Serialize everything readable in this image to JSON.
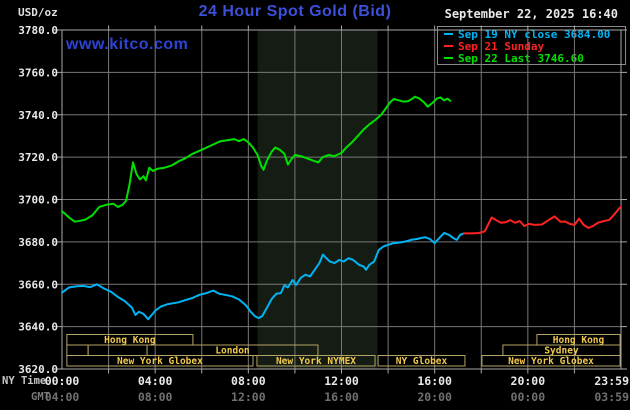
{
  "header": {
    "units_label": "USD/oz",
    "title": "24 Hour Spot Gold (Bid)",
    "datetime": "September 22, 2025 16:40",
    "watermark": "www.kitco.com"
  },
  "legend": {
    "items": [
      {
        "label": "Sep 19 NY close 3684.00",
        "color": "#00b4f4"
      },
      {
        "label": "Sep 21 Sunday",
        "color": "#ff2222"
      },
      {
        "label": "Sep 22 Last 3746.60",
        "color": "#00e000"
      }
    ]
  },
  "colors": {
    "title": "#3c50d8",
    "watermark": "#2e44d4",
    "grid": "#777777",
    "border": "#a8a8a8",
    "axis_text": "#e8e8e8",
    "gmt_text": "#707070",
    "session_border": "#b3a265",
    "session_text": "#f0c94e",
    "band": "#141c14"
  },
  "axes": {
    "y": {
      "labels": [
        "3780.0",
        "3760.0",
        "3740.0",
        "3720.0",
        "3700.0",
        "3680.0",
        "3660.0",
        "3640.0",
        "3620.0"
      ]
    },
    "x": {
      "ny_caption": "NY Time",
      "gmt_caption": "GMT",
      "ticks": [
        {
          "h": 0,
          "ny": "00:00",
          "gmt": "04:00"
        },
        {
          "h": 4,
          "ny": "04:00",
          "gmt": "08:00"
        },
        {
          "h": 8,
          "ny": "08:00",
          "gmt": "12:00"
        },
        {
          "h": 12,
          "ny": "12:00",
          "gmt": "16:00"
        },
        {
          "h": 16,
          "ny": "16:00",
          "gmt": "20:00"
        },
        {
          "h": 20,
          "ny": "20:00",
          "gmt": "00:00"
        },
        {
          "h": 23.983,
          "ny": "23:59",
          "gmt": "03:59"
        }
      ]
    }
  },
  "sessions": {
    "rows": [
      [
        {
          "label": "Hong Kong",
          "start_h": 0.21,
          "end_h": 5.62
        },
        {
          "label": "Hong Kong",
          "start_h": 20.39,
          "end_h": 23.96
        }
      ],
      [
        {
          "label": "",
          "start_h": 0.21,
          "end_h": 1.12
        },
        {
          "label": "",
          "start_h": 1.12,
          "end_h": 3.65
        },
        {
          "label": "London",
          "start_h": 3.65,
          "end_h": 10.99
        },
        {
          "label": "Sydney",
          "start_h": 18.93,
          "end_h": 23.96
        }
      ],
      [
        {
          "label": "New York Globex",
          "start_h": 0.21,
          "end_h": 8.2
        },
        {
          "label": "New York NYMEX",
          "start_h": 8.37,
          "end_h": 13.44
        },
        {
          "label": "NY Globex",
          "start_h": 13.57,
          "end_h": 17.3
        },
        {
          "label": "New York Globex",
          "start_h": 18.03,
          "end_h": 23.96
        }
      ]
    ]
  },
  "chart_data": {
    "type": "line",
    "title": "24 Hour Spot Gold (Bid)",
    "xlabel": "NY Time (hours)",
    "ylabel": "USD/oz",
    "xlim": [
      0,
      24
    ],
    "ylim": [
      3620,
      3780
    ],
    "y_tick_step": 20,
    "x_gridline_step_h": 2,
    "legend_position": "top-right",
    "shaded_region": {
      "label": "New York NYMEX session",
      "start_h": 8.4,
      "end_h": 13.55
    },
    "series": [
      {
        "name": "Sep 19 NY close",
        "color": "#00b4f4",
        "close_value": 3684.0,
        "points": [
          [
            0,
            3656
          ],
          [
            0.3,
            3658.5
          ],
          [
            0.6,
            3659
          ],
          [
            0.9,
            3659.2
          ],
          [
            1.2,
            3658.6
          ],
          [
            1.5,
            3660
          ],
          [
            1.8,
            3658
          ],
          [
            2.1,
            3656.5
          ],
          [
            2.4,
            3654
          ],
          [
            2.7,
            3652
          ],
          [
            3,
            3649
          ],
          [
            3.15,
            3645.5
          ],
          [
            3.3,
            3647
          ],
          [
            3.5,
            3646
          ],
          [
            3.7,
            3643.5
          ],
          [
            3.85,
            3645.5
          ],
          [
            4,
            3647.5
          ],
          [
            4.25,
            3649.5
          ],
          [
            4.5,
            3650.5
          ],
          [
            4.75,
            3651
          ],
          [
            5,
            3651.5
          ],
          [
            5.3,
            3652.5
          ],
          [
            5.6,
            3653.5
          ],
          [
            5.9,
            3655
          ],
          [
            6.2,
            3655.8
          ],
          [
            6.5,
            3657
          ],
          [
            6.75,
            3655.5
          ],
          [
            7,
            3655
          ],
          [
            7.3,
            3654.3
          ],
          [
            7.6,
            3652.8
          ],
          [
            7.9,
            3650
          ],
          [
            8.1,
            3647
          ],
          [
            8.3,
            3644.8
          ],
          [
            8.45,
            3644
          ],
          [
            8.6,
            3645
          ],
          [
            8.8,
            3649
          ],
          [
            9,
            3653
          ],
          [
            9.2,
            3655.5
          ],
          [
            9.4,
            3655.8
          ],
          [
            9.55,
            3659.5
          ],
          [
            9.7,
            3658.5
          ],
          [
            9.9,
            3662
          ],
          [
            10.05,
            3659.7
          ],
          [
            10.25,
            3663
          ],
          [
            10.45,
            3664.5
          ],
          [
            10.65,
            3663.7
          ],
          [
            10.85,
            3666.8
          ],
          [
            11.05,
            3670
          ],
          [
            11.2,
            3674
          ],
          [
            11.35,
            3672.3
          ],
          [
            11.5,
            3670.7
          ],
          [
            11.7,
            3670
          ],
          [
            11.9,
            3671.5
          ],
          [
            12.1,
            3670.7
          ],
          [
            12.3,
            3672.3
          ],
          [
            12.5,
            3671.5
          ],
          [
            12.75,
            3669.2
          ],
          [
            12.95,
            3668.4
          ],
          [
            13.05,
            3666.8
          ],
          [
            13.2,
            3669.2
          ],
          [
            13.4,
            3670.7
          ],
          [
            13.6,
            3676.2
          ],
          [
            13.8,
            3677.8
          ],
          [
            14,
            3678.6
          ],
          [
            14.25,
            3679.4
          ],
          [
            14.5,
            3679.7
          ],
          [
            14.75,
            3680.2
          ],
          [
            15,
            3681
          ],
          [
            15.2,
            3681.3
          ],
          [
            15.4,
            3681.8
          ],
          [
            15.6,
            3682.2
          ],
          [
            15.8,
            3681.3
          ],
          [
            16,
            3679.4
          ],
          [
            16.2,
            3681.8
          ],
          [
            16.4,
            3684.2
          ],
          [
            16.6,
            3683.4
          ],
          [
            16.8,
            3681.8
          ],
          [
            16.95,
            3681
          ],
          [
            17.1,
            3683.4
          ],
          [
            17.25,
            3684
          ]
        ]
      },
      {
        "name": "Sep 21 Sunday",
        "color": "#ff2222",
        "points": [
          [
            17.25,
            3684
          ],
          [
            17.6,
            3684
          ],
          [
            17.9,
            3684.2
          ],
          [
            18.15,
            3685
          ],
          [
            18.45,
            3691.5
          ],
          [
            18.65,
            3690.2
          ],
          [
            18.85,
            3689
          ],
          [
            19.05,
            3689.3
          ],
          [
            19.25,
            3690.3
          ],
          [
            19.45,
            3689
          ],
          [
            19.65,
            3689.8
          ],
          [
            19.85,
            3687.5
          ],
          [
            20.05,
            3688.5
          ],
          [
            20.3,
            3688
          ],
          [
            20.6,
            3688.2
          ],
          [
            20.85,
            3690
          ],
          [
            21.15,
            3692
          ],
          [
            21.4,
            3689.5
          ],
          [
            21.6,
            3689.6
          ],
          [
            21.8,
            3688.5
          ],
          [
            22,
            3688
          ],
          [
            22.2,
            3691
          ],
          [
            22.4,
            3688
          ],
          [
            22.6,
            3686.6
          ],
          [
            22.8,
            3687.5
          ],
          [
            23,
            3689
          ],
          [
            23.2,
            3689.6
          ],
          [
            23.5,
            3690.4
          ],
          [
            23.7,
            3692.8
          ],
          [
            23.9,
            3695.5
          ],
          [
            24,
            3696.6
          ]
        ]
      },
      {
        "name": "Sep 22 Last",
        "color": "#00e000",
        "last_value": 3746.6,
        "points": [
          [
            0,
            3694.5
          ],
          [
            0.15,
            3693
          ],
          [
            0.3,
            3691.5
          ],
          [
            0.55,
            3689.5
          ],
          [
            0.8,
            3690
          ],
          [
            1,
            3690.5
          ],
          [
            1.3,
            3692.5
          ],
          [
            1.6,
            3696.5
          ],
          [
            1.9,
            3697.5
          ],
          [
            2.2,
            3698
          ],
          [
            2.4,
            3696.5
          ],
          [
            2.6,
            3697.5
          ],
          [
            2.75,
            3699.5
          ],
          [
            2.9,
            3707
          ],
          [
            3.05,
            3717.5
          ],
          [
            3.2,
            3712
          ],
          [
            3.35,
            3709.5
          ],
          [
            3.5,
            3711
          ],
          [
            3.6,
            3709
          ],
          [
            3.75,
            3715
          ],
          [
            3.9,
            3713.5
          ],
          [
            4.1,
            3714.5
          ],
          [
            4.4,
            3715
          ],
          [
            4.7,
            3716
          ],
          [
            5,
            3718
          ],
          [
            5.3,
            3719.5
          ],
          [
            5.6,
            3721.5
          ],
          [
            5.9,
            3723
          ],
          [
            6.2,
            3724.5
          ],
          [
            6.5,
            3726
          ],
          [
            6.8,
            3727.5
          ],
          [
            7.1,
            3728
          ],
          [
            7.4,
            3728.5
          ],
          [
            7.6,
            3727.5
          ],
          [
            7.8,
            3728.5
          ],
          [
            8,
            3727
          ],
          [
            8.2,
            3724.5
          ],
          [
            8.4,
            3721
          ],
          [
            8.55,
            3716
          ],
          [
            8.65,
            3714
          ],
          [
            8.8,
            3718.5
          ],
          [
            9,
            3722.5
          ],
          [
            9.15,
            3724.5
          ],
          [
            9.35,
            3723.5
          ],
          [
            9.55,
            3721.5
          ],
          [
            9.7,
            3716.5
          ],
          [
            9.85,
            3719
          ],
          [
            10,
            3721
          ],
          [
            10.25,
            3720.5
          ],
          [
            10.5,
            3719.5
          ],
          [
            10.75,
            3718.5
          ],
          [
            11,
            3717.5
          ],
          [
            11.2,
            3720
          ],
          [
            11.45,
            3721
          ],
          [
            11.7,
            3720.5
          ],
          [
            12,
            3722
          ],
          [
            12.2,
            3724.5
          ],
          [
            12.45,
            3727
          ],
          [
            12.7,
            3730
          ],
          [
            12.95,
            3733
          ],
          [
            13.2,
            3735.5
          ],
          [
            13.45,
            3737.5
          ],
          [
            13.7,
            3740
          ],
          [
            13.9,
            3743
          ],
          [
            14.1,
            3746
          ],
          [
            14.25,
            3747.5
          ],
          [
            14.45,
            3746.8
          ],
          [
            14.65,
            3746.2
          ],
          [
            14.85,
            3746.4
          ],
          [
            15.05,
            3747.6
          ],
          [
            15.15,
            3748.5
          ],
          [
            15.35,
            3747.6
          ],
          [
            15.55,
            3745.8
          ],
          [
            15.7,
            3743.8
          ],
          [
            15.9,
            3745.5
          ],
          [
            16.1,
            3747.7
          ],
          [
            16.25,
            3748.2
          ],
          [
            16.4,
            3746.8
          ],
          [
            16.55,
            3747.6
          ],
          [
            16.67,
            3746.6
          ]
        ]
      }
    ]
  }
}
